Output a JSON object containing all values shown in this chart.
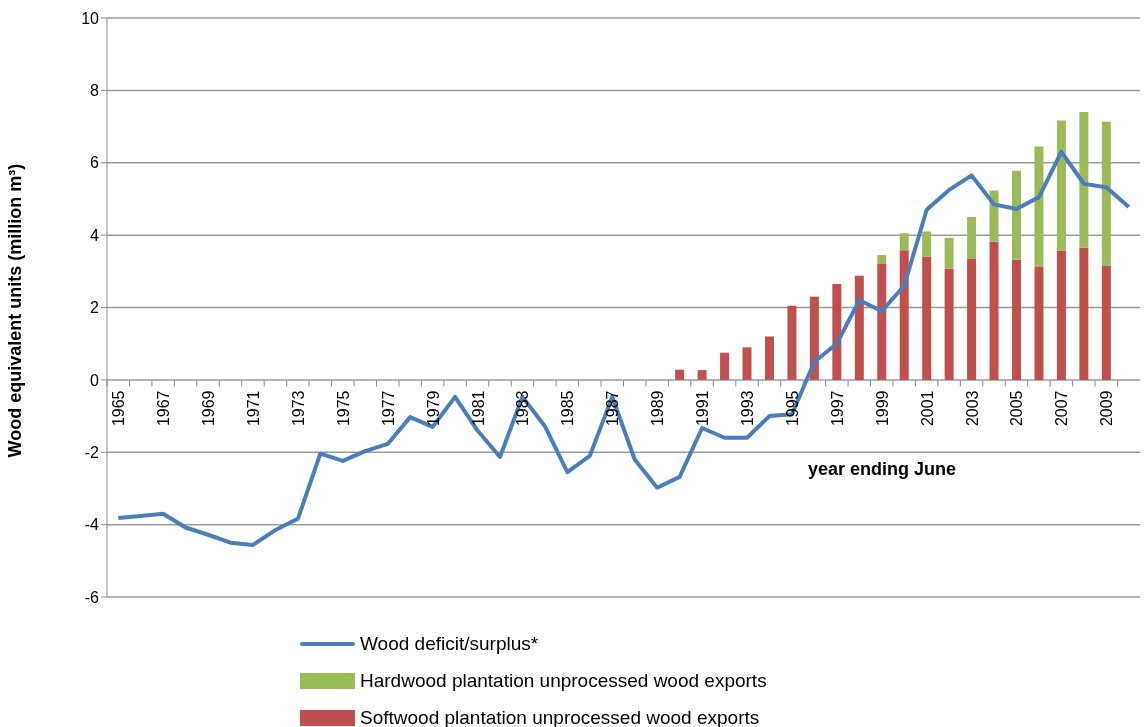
{
  "chart_data": {
    "type": "bar",
    "stacked": true,
    "ylabel": "Wood equivalent units (million m³)",
    "xlabel": "year ending June",
    "categories": [
      "1965",
      null,
      "1967",
      null,
      "1969",
      null,
      "1971",
      null,
      "1973",
      null,
      "1975",
      null,
      "1977",
      null,
      "1979",
      null,
      "1981",
      null,
      "1983",
      null,
      "1985",
      null,
      "1987",
      null,
      "1989",
      null,
      "1991",
      null,
      "1993",
      null,
      "1995",
      null,
      "1997",
      null,
      "1999",
      null,
      "2001",
      null,
      "2003",
      null,
      "2005",
      null,
      "2007",
      null,
      "2009",
      null
    ],
    "series": [
      {
        "name": "Softwood plantation unprocessed wood exports",
        "color": "#c0504d",
        "values": [
          null,
          null,
          null,
          null,
          null,
          null,
          null,
          null,
          null,
          null,
          null,
          null,
          null,
          null,
          null,
          null,
          null,
          null,
          null,
          null,
          null,
          null,
          null,
          null,
          null,
          0.28,
          0.27,
          0.75,
          0.9,
          1.2,
          2.05,
          2.3,
          2.65,
          2.88,
          3.2,
          3.58,
          3.4,
          3.08,
          3.34,
          3.82,
          3.32,
          3.12,
          3.57,
          3.65,
          3.15,
          null
        ]
      },
      {
        "name": "Hardwood plantation unprocessed wood exports",
        "color": "#9bbb59",
        "values": [
          null,
          null,
          null,
          null,
          null,
          null,
          null,
          null,
          null,
          null,
          null,
          null,
          null,
          null,
          null,
          null,
          null,
          null,
          null,
          null,
          null,
          null,
          null,
          null,
          null,
          null,
          null,
          null,
          null,
          null,
          null,
          null,
          null,
          null,
          0.25,
          0.47,
          0.7,
          0.85,
          1.16,
          1.41,
          2.46,
          3.33,
          3.6,
          3.75,
          3.98,
          null
        ]
      },
      {
        "name": "Wood deficit/surplus*",
        "type": "line",
        "color": "#4a7ebb",
        "marker": "none",
        "values": [
          -3.82,
          -3.76,
          -3.7,
          -4.08,
          -4.28,
          -4.5,
          -4.56,
          -4.15,
          -3.84,
          -2.04,
          -2.24,
          -1.97,
          -1.77,
          -1.03,
          -1.3,
          -0.47,
          -1.4,
          -2.13,
          -0.47,
          -1.28,
          -2.55,
          -2.1,
          -0.47,
          -2.2,
          -2.98,
          -2.68,
          -1.33,
          -1.6,
          -1.6,
          -1.0,
          -0.95,
          0.5,
          1.0,
          2.2,
          1.9,
          2.6,
          4.7,
          5.25,
          5.65,
          4.85,
          4.72,
          5.05,
          6.3,
          5.42,
          5.32,
          4.78
        ]
      }
    ],
    "ylim": [
      -6,
      10
    ],
    "yticks": [
      -6,
      -4,
      -2,
      0,
      2,
      4,
      6,
      8,
      10
    ],
    "grid": "y",
    "legend": "bottom"
  }
}
